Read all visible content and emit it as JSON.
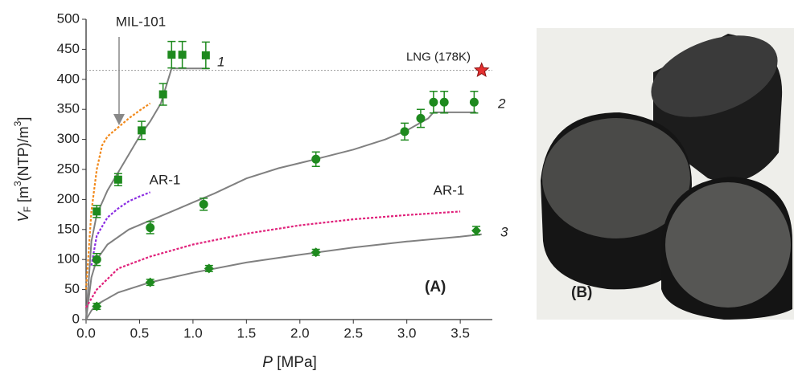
{
  "chart_data": {
    "type": "scatter",
    "x_label": [
      "P",
      " [MPa]"
    ],
    "y_label": [
      "V",
      "F",
      "  [m",
      "3",
      "(NTP)/m",
      "3",
      "]"
    ],
    "xlim": [
      0,
      3.8
    ],
    "ylim": [
      0,
      500
    ],
    "xticks": [
      {
        "value": 0,
        "label": "0.0"
      },
      {
        "value": 0.5,
        "label": "0.5"
      },
      {
        "value": 1,
        "label": "1.0"
      },
      {
        "value": 1.5,
        "label": "1.5"
      },
      {
        "value": 2,
        "label": "2.0"
      },
      {
        "value": 2.5,
        "label": "2.5"
      },
      {
        "value": 3,
        "label": "3.0"
      },
      {
        "value": 3.5,
        "label": "3.5"
      }
    ],
    "yticks": [
      0,
      50,
      100,
      150,
      200,
      250,
      300,
      350,
      400,
      450,
      500
    ],
    "series": [
      {
        "name": "1",
        "marker": "square",
        "color": "#1e8a1e",
        "x": [
          0.1,
          0.3,
          0.52,
          0.72,
          0.8,
          0.9,
          1.12
        ],
        "values": [
          180,
          233,
          315,
          375,
          441,
          441,
          440
        ],
        "errors": [
          10,
          10,
          15,
          18,
          22,
          22,
          22
        ]
      },
      {
        "name": "2",
        "marker": "circle",
        "color": "#1e8a1e",
        "x": [
          0.1,
          0.6,
          1.1,
          2.15,
          2.98,
          3.13,
          3.25,
          3.35,
          3.63
        ],
        "values": [
          100,
          153,
          192,
          267,
          313,
          335,
          362,
          362,
          362
        ],
        "errors": [
          10,
          10,
          10,
          12,
          14,
          15,
          18,
          18,
          18
        ]
      },
      {
        "name": "3",
        "marker": "diamond",
        "color": "#1e8a1e",
        "x": [
          0.1,
          0.6,
          1.15,
          2.15,
          3.65
        ],
        "values": [
          22,
          62,
          85,
          112,
          148
        ],
        "errors": [
          5,
          5,
          5,
          5,
          7
        ]
      }
    ],
    "lines": [
      {
        "color": "#808080",
        "dash": false,
        "x": [
          0,
          0.05,
          0.1,
          0.2,
          0.3,
          0.4,
          0.5,
          0.6,
          0.7,
          0.8,
          1.15
        ],
        "values": [
          0,
          130,
          175,
          215,
          245,
          275,
          305,
          330,
          360,
          418,
          418
        ]
      },
      {
        "color": "#808080",
        "dash": false,
        "x": [
          0,
          0.05,
          0.1,
          0.2,
          0.4,
          0.6,
          0.8,
          1.0,
          1.2,
          1.5,
          1.8,
          2.1,
          2.5,
          2.8,
          3.0,
          3.2,
          3.25,
          3.65
        ],
        "values": [
          0,
          70,
          100,
          125,
          150,
          165,
          180,
          195,
          210,
          235,
          252,
          265,
          283,
          300,
          315,
          335,
          345,
          345
        ]
      },
      {
        "color": "#808080",
        "dash": false,
        "x": [
          0,
          0.05,
          0.1,
          0.3,
          0.6,
          1.0,
          1.5,
          2.0,
          2.5,
          3.0,
          3.5,
          3.7
        ],
        "values": [
          0,
          15,
          25,
          45,
          62,
          78,
          95,
          108,
          120,
          130,
          138,
          142
        ]
      },
      {
        "name": "MIL-101",
        "color": "#f28a1c",
        "dash": true,
        "x": [
          0,
          0.05,
          0.1,
          0.15,
          0.2,
          0.3,
          0.4,
          0.5,
          0.6
        ],
        "values": [
          50,
          180,
          250,
          290,
          305,
          320,
          335,
          348,
          360
        ]
      },
      {
        "name": "AR-1",
        "color": "#8a2be2",
        "dash": true,
        "x": [
          0.05,
          0.1,
          0.2,
          0.3,
          0.4,
          0.5,
          0.6
        ],
        "values": [
          90,
          140,
          170,
          185,
          197,
          205,
          212
        ]
      },
      {
        "name": "AR-1",
        "color": "#e0207a",
        "dash": true,
        "x": [
          0,
          0.1,
          0.3,
          0.6,
          1.0,
          1.5,
          2.0,
          2.5,
          3.0,
          3.5
        ],
        "values": [
          20,
          50,
          85,
          105,
          125,
          143,
          157,
          167,
          174,
          180
        ]
      }
    ],
    "hline": {
      "value": 415,
      "label": "LNG (178K)",
      "star_x": 3.7
    },
    "panel_labels": [
      "(A)",
      "(B)"
    ]
  }
}
